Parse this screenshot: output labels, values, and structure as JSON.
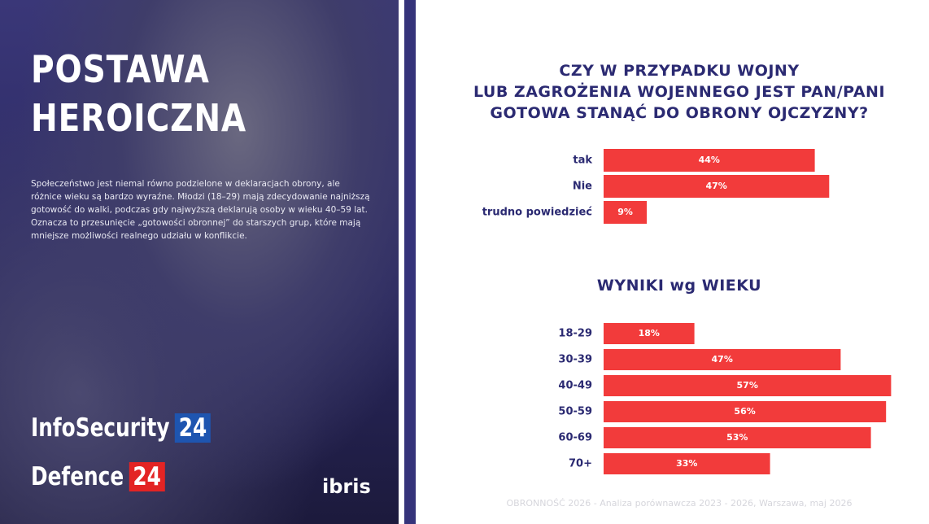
{
  "panel": {
    "title_lines": [
      "POSTAWA",
      "HEROICZNA"
    ],
    "text": "Społeczeństwo jest niemal równo podzielone w deklaracjach obrony, ale różnice wieku są bardzo wyraźne. Młodzi (18–29) mają zdecydowanie najniższą gotowość do walki, podczas gdy najwyższą deklarują osoby w wieku 40–59 lat. Oznacza to przesunięcie „gotowości obronnej” do starszych grup, które mają mniejsze możliwości realnego udziału w konflikcie.",
    "logo1": "InfoSecurity",
    "logo1_badge": "24",
    "logo2": "Defence",
    "logo2_badge": "24",
    "logo3": "ibris"
  },
  "chart_data": [
    {
      "type": "bar",
      "title": "CZY W PRZYPADKU WOJNY\nLUB ZAGROŻENIA WOJENNEGO JEST PAN/PANI\nGOTOWA STANĄĆ DO OBRONY OJCZYZNY?",
      "categories": [
        "tak",
        "Nie",
        "trudno powiedzieć"
      ],
      "values": [
        44,
        47,
        9
      ],
      "value_labels": [
        "44%",
        "47%",
        "9%"
      ],
      "color": "#f23b3b"
    },
    {
      "type": "bar",
      "title": "WYNIKI wg WIEKU",
      "categories": [
        "18-29",
        "30-39",
        "40-49",
        "50-59",
        "60-69",
        "70+"
      ],
      "values": [
        18,
        47,
        57,
        56,
        53,
        33
      ],
      "value_labels": [
        "18%",
        "47%",
        "57%",
        "56%",
        "53%",
        "33%"
      ],
      "color": "#f23b3b"
    }
  ],
  "footer": "OBRONNOŚĆ 2026 - Analiza porównawcza 2023 - 2026, Warszawa, maj 2026"
}
